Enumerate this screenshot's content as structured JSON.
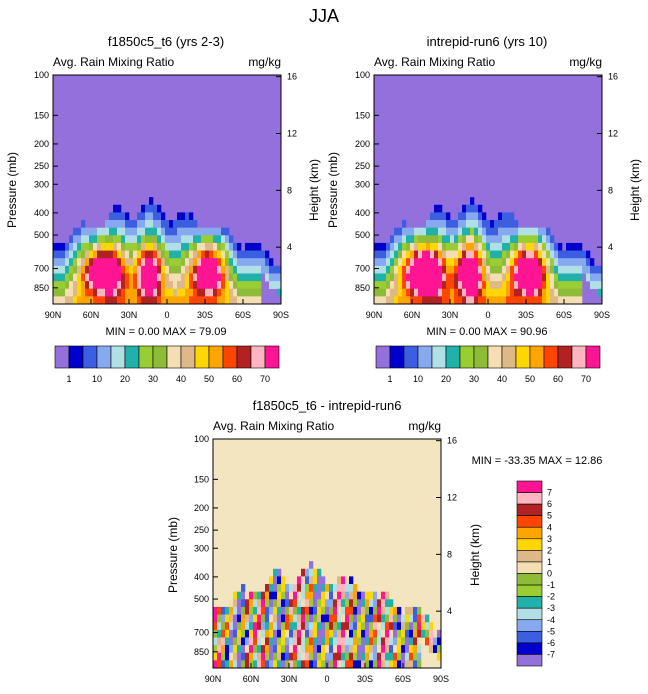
{
  "page_title": "JJA",
  "panels": [
    {
      "title": "f1850c5_t6 (yrs 2-3)",
      "left_label": "Avg. Rain Mixing Ratio",
      "right_label": "mg/kg",
      "stats": "MIN =  0.00  MAX =  79.09",
      "ylabel": "Pressure (mb)",
      "ylabel2": "Height (km)"
    },
    {
      "title": "intrepid-run6 (yrs 10)",
      "left_label": "Avg. Rain Mixing Ratio",
      "right_label": "mg/kg",
      "stats": "MIN =  0.00  MAX =  90.96",
      "ylabel": "Pressure (mb)",
      "ylabel2": "Height (km)"
    },
    {
      "title": "f1850c5_t6 - intrepid-run6",
      "left_label": "Avg. Rain Mixing Ratio",
      "right_label": "mg/kg",
      "stats": "MIN = -33.35  MAX =  12.86",
      "ylabel": "Pressure (mb)",
      "ylabel2": "Height (km)"
    }
  ],
  "chart_data": [
    {
      "type": "heatmap",
      "title": "f1850c5_t6 (yrs 2-3)",
      "x_ticks": [
        "90N",
        "60N",
        "30N",
        "0",
        "30S",
        "60S",
        "90S"
      ],
      "y_ticks": [
        100,
        150,
        200,
        250,
        300,
        400,
        500,
        700,
        850
      ],
      "y2_ticks": [
        16,
        12,
        8,
        4
      ],
      "ylim": [
        100,
        1000
      ],
      "y_scale": "log",
      "min": 0.0,
      "max": 79.09,
      "colorbar": {
        "labels": [
          "1",
          "10",
          "20",
          "30",
          "40",
          "50",
          "60",
          "70"
        ],
        "colors": [
          "#9370db",
          "#0000cd",
          "#3b5fe0",
          "#87a9f0",
          "#b0e0e6",
          "#20b2aa",
          "#9acd32",
          "#8fbc38",
          "#f5deb3",
          "#deb887",
          "#ffd700",
          "#ffa500",
          "#ff4500",
          "#b22222",
          "#ffb6c1",
          "#ff1493"
        ]
      }
    },
    {
      "type": "heatmap",
      "title": "intrepid-run6 (yrs 10)",
      "x_ticks": [
        "90N",
        "60N",
        "30N",
        "0",
        "30S",
        "60S",
        "90S"
      ],
      "y_ticks": [
        100,
        150,
        200,
        250,
        300,
        400,
        500,
        700,
        850
      ],
      "y2_ticks": [
        16,
        12,
        8,
        4
      ],
      "ylim": [
        100,
        1000
      ],
      "y_scale": "log",
      "min": 0.0,
      "max": 90.96,
      "colorbar": {
        "labels": [
          "1",
          "10",
          "20",
          "30",
          "40",
          "50",
          "60",
          "70"
        ],
        "colors": [
          "#9370db",
          "#0000cd",
          "#3b5fe0",
          "#87a9f0",
          "#b0e0e6",
          "#20b2aa",
          "#9acd32",
          "#8fbc38",
          "#f5deb3",
          "#deb887",
          "#ffd700",
          "#ffa500",
          "#ff4500",
          "#b22222",
          "#ffb6c1",
          "#ff1493"
        ]
      }
    },
    {
      "type": "heatmap",
      "title": "f1850c5_t6 - intrepid-run6",
      "x_ticks": [
        "90N",
        "60N",
        "30N",
        "0",
        "30S",
        "60S",
        "90S"
      ],
      "y_ticks": [
        100,
        150,
        200,
        250,
        300,
        400,
        500,
        700,
        850
      ],
      "y2_ticks": [
        16,
        12,
        8,
        4
      ],
      "ylim": [
        100,
        1000
      ],
      "y_scale": "log",
      "min": -33.35,
      "max": 12.86,
      "colorbar": {
        "labels": [
          "7",
          "6",
          "5",
          "4",
          "3",
          "2",
          "1",
          "0",
          "-1",
          "-2",
          "-3",
          "-4",
          "-5",
          "-6",
          "-7"
        ],
        "colors": [
          "#ff1493",
          "#ffb6c1",
          "#b22222",
          "#ff4500",
          "#ffa500",
          "#ffd700",
          "#deb887",
          "#f5deb3",
          "#8fbc38",
          "#9acd32",
          "#20b2aa",
          "#b0e0e6",
          "#87a9f0",
          "#3b5fe0",
          "#0000cd",
          "#9370db"
        ]
      }
    }
  ]
}
